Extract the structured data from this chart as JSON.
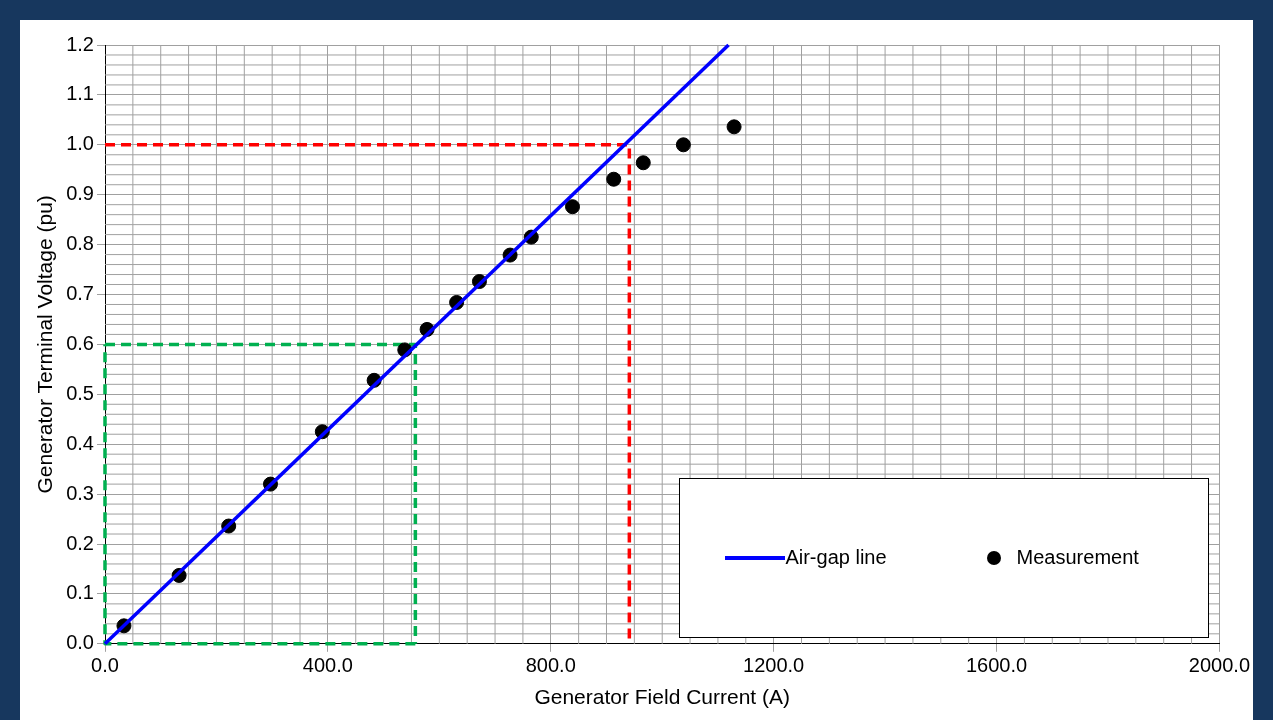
{
  "chart_data": {
    "type": "scatter",
    "xlabel": "Generator Field Current (A)",
    "ylabel": "Generator Terminal Voltage (pu)",
    "xlim": [
      0,
      2000
    ],
    "xticks": [
      {
        "value": 0,
        "label": "0.0"
      },
      {
        "value": 400,
        "label": "400.0"
      },
      {
        "value": 800,
        "label": "800.0"
      },
      {
        "value": 1200,
        "label": "1200.0"
      },
      {
        "value": 1600,
        "label": "1600.0"
      },
      {
        "value": 2000,
        "label": "2000.0"
      }
    ],
    "ylim": [
      0,
      1.2
    ],
    "yticks": [
      {
        "value": 0,
        "label": "0.0"
      },
      {
        "value": 0.1,
        "label": "0.1"
      },
      {
        "value": 0.2,
        "label": "0.2"
      },
      {
        "value": 0.3,
        "label": "0.3"
      },
      {
        "value": 0.4,
        "label": "0.4"
      },
      {
        "value": 0.5,
        "label": "0.5"
      },
      {
        "value": 0.6,
        "label": "0.6"
      },
      {
        "value": 0.7,
        "label": "0.7"
      },
      {
        "value": 0.8,
        "label": "0.8"
      },
      {
        "value": 0.9,
        "label": "0.9"
      },
      {
        "value": 1.0,
        "label": "1.0"
      },
      {
        "value": 1.1,
        "label": "1.1"
      },
      {
        "value": 1.2,
        "label": "1.2"
      }
    ],
    "grid": true,
    "legend": "bottom right",
    "series": [
      {
        "name": "Air-gap line",
        "type": "line",
        "color": "#0000ff",
        "marker": "none",
        "line_style": "solid",
        "x": [
          0,
          1119
        ],
        "values": [
          0,
          1.2
        ]
      },
      {
        "name": "Measurement",
        "color": "#000000",
        "marker": "circle",
        "x": [
          34,
          133,
          222,
          297,
          390,
          483,
          538,
          578,
          631,
          672,
          727,
          765,
          839,
          913,
          966,
          1038,
          1129
        ],
        "values": [
          0.036,
          0.137,
          0.236,
          0.32,
          0.425,
          0.528,
          0.589,
          0.63,
          0.684,
          0.726,
          0.779,
          0.815,
          0.876,
          0.931,
          0.964,
          1.0,
          1.036
        ]
      },
      {
        "type": "line",
        "color": "#ff0000",
        "marker": "none",
        "line_style": "dashed",
        "x": [
          0,
          941,
          941
        ],
        "values": [
          1.0,
          1.0,
          0
        ]
      },
      {
        "type": "line",
        "color": "#00b050",
        "marker": "none",
        "line_style": "dashed",
        "x": [
          0,
          557,
          557
        ],
        "values": [
          0.6,
          0.6,
          0
        ]
      },
      {
        "type": "line",
        "color": "#00b050",
        "marker": "none",
        "line_style": "dashed",
        "x": [
          557,
          0,
          0
        ],
        "values": [
          0,
          0,
          0.6
        ]
      }
    ]
  }
}
